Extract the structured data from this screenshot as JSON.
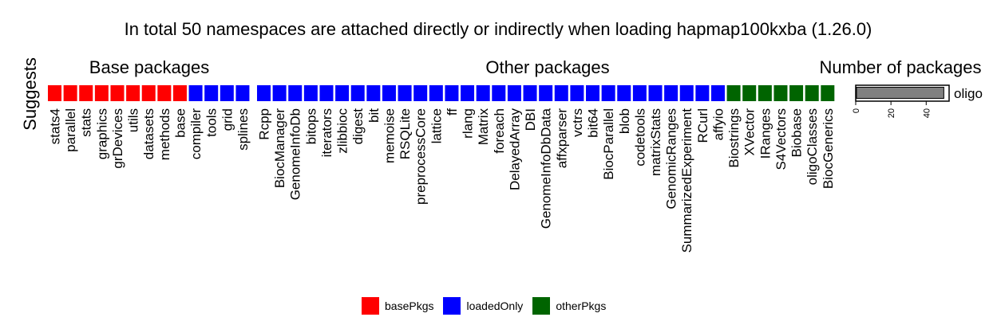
{
  "title": "In total 50 namespaces are attached directly or indirectly when loading hapmap100kxba (1.26.0)",
  "y_axis_label": "Suggests",
  "group_headers": [
    "Base packages",
    "Other packages",
    "Number of packages"
  ],
  "legend": [
    {
      "label": "basePkgs",
      "color": "#ff0000"
    },
    {
      "label": "loadedOnly",
      "color": "#0000ff"
    },
    {
      "label": "otherPkgs",
      "color": "#006400"
    }
  ],
  "chart_data": [
    {
      "type": "heatmap",
      "y_label": "Suggests",
      "panels": [
        {
          "name": "Base packages",
          "tiles": [
            {
              "package": "stats4",
              "category": "basePkgs"
            },
            {
              "package": "parallel",
              "category": "basePkgs"
            },
            {
              "package": "stats",
              "category": "basePkgs"
            },
            {
              "package": "graphics",
              "category": "basePkgs"
            },
            {
              "package": "grDevices",
              "category": "basePkgs"
            },
            {
              "package": "utils",
              "category": "basePkgs"
            },
            {
              "package": "datasets",
              "category": "basePkgs"
            },
            {
              "package": "methods",
              "category": "basePkgs"
            },
            {
              "package": "base",
              "category": "basePkgs"
            },
            {
              "package": "compiler",
              "category": "loadedOnly"
            },
            {
              "package": "tools",
              "category": "loadedOnly"
            },
            {
              "package": "grid",
              "category": "loadedOnly"
            },
            {
              "package": "splines",
              "category": "loadedOnly"
            }
          ]
        },
        {
          "name": "Other packages",
          "tiles": [
            {
              "package": "Rcpp",
              "category": "loadedOnly"
            },
            {
              "package": "BiocManager",
              "category": "loadedOnly"
            },
            {
              "package": "GenomeInfoDb",
              "category": "loadedOnly"
            },
            {
              "package": "bitops",
              "category": "loadedOnly"
            },
            {
              "package": "iterators",
              "category": "loadedOnly"
            },
            {
              "package": "zlibbioc",
              "category": "loadedOnly"
            },
            {
              "package": "digest",
              "category": "loadedOnly"
            },
            {
              "package": "bit",
              "category": "loadedOnly"
            },
            {
              "package": "memoise",
              "category": "loadedOnly"
            },
            {
              "package": "RSQLite",
              "category": "loadedOnly"
            },
            {
              "package": "preprocessCore",
              "category": "loadedOnly"
            },
            {
              "package": "lattice",
              "category": "loadedOnly"
            },
            {
              "package": "ff",
              "category": "loadedOnly"
            },
            {
              "package": "rlang",
              "category": "loadedOnly"
            },
            {
              "package": "Matrix",
              "category": "loadedOnly"
            },
            {
              "package": "foreach",
              "category": "loadedOnly"
            },
            {
              "package": "DelayedArray",
              "category": "loadedOnly"
            },
            {
              "package": "DBI",
              "category": "loadedOnly"
            },
            {
              "package": "GenomeInfoDbData",
              "category": "loadedOnly"
            },
            {
              "package": "affxparser",
              "category": "loadedOnly"
            },
            {
              "package": "vctrs",
              "category": "loadedOnly"
            },
            {
              "package": "bit64",
              "category": "loadedOnly"
            },
            {
              "package": "BiocParallel",
              "category": "loadedOnly"
            },
            {
              "package": "blob",
              "category": "loadedOnly"
            },
            {
              "package": "codetools",
              "category": "loadedOnly"
            },
            {
              "package": "matrixStats",
              "category": "loadedOnly"
            },
            {
              "package": "GenomicRanges",
              "category": "loadedOnly"
            },
            {
              "package": "SummarizedExperiment",
              "category": "loadedOnly"
            },
            {
              "package": "RCurl",
              "category": "loadedOnly"
            },
            {
              "package": "affyio",
              "category": "loadedOnly"
            },
            {
              "package": "Biostrings",
              "category": "otherPkgs"
            },
            {
              "package": "XVector",
              "category": "otherPkgs"
            },
            {
              "package": "IRanges",
              "category": "otherPkgs"
            },
            {
              "package": "S4Vectors",
              "category": "otherPkgs"
            },
            {
              "package": "Biobase",
              "category": "otherPkgs"
            },
            {
              "package": "oligoClasses",
              "category": "otherPkgs"
            },
            {
              "package": "BiocGenerics",
              "category": "otherPkgs"
            }
          ]
        }
      ]
    },
    {
      "type": "bar",
      "title": "Number of packages",
      "orientation": "horizontal",
      "categories": [
        "oligo"
      ],
      "values": [
        50
      ],
      "bar_color": "#808080",
      "xlim": [
        0,
        53
      ],
      "x_ticks": [
        0,
        20,
        40
      ]
    }
  ]
}
